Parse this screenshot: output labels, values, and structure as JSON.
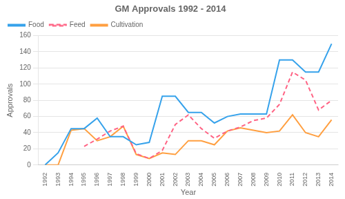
{
  "chart_data": {
    "type": "line",
    "title": "GM Approvals 1992 - 2014",
    "xlabel": "Year",
    "ylabel": "Approvals",
    "x": [
      1992,
      1993,
      1994,
      1995,
      1996,
      1997,
      1998,
      1999,
      2000,
      2001,
      2002,
      2003,
      2004,
      2005,
      2006,
      2007,
      2008,
      2009,
      2010,
      2011,
      2012,
      2013,
      2014
    ],
    "series": [
      {
        "name": "Food",
        "line_style": "solid",
        "values": [
          0,
          15,
          45,
          45,
          58,
          35,
          35,
          25,
          28,
          85,
          85,
          65,
          65,
          52,
          60,
          63,
          63,
          63,
          130,
          130,
          115,
          115,
          150
        ]
      },
      {
        "name": "Feed",
        "line_style": "dashed",
        "values": [
          null,
          null,
          null,
          23,
          32,
          42,
          48,
          14,
          8,
          18,
          50,
          62,
          45,
          33,
          42,
          47,
          55,
          58,
          75,
          115,
          105,
          68,
          80
        ]
      },
      {
        "name": "Cultivation",
        "line_style": "solid",
        "values": [
          0,
          0,
          43,
          45,
          30,
          35,
          48,
          13,
          8,
          15,
          13,
          30,
          30,
          25,
          42,
          46,
          43,
          40,
          42,
          62,
          40,
          35,
          56
        ]
      }
    ],
    "xlim": [
      1991.5,
      2014.5
    ],
    "xticks": [
      1992,
      1993,
      1994,
      1995,
      1996,
      1997,
      1998,
      1999,
      2000,
      2001,
      2002,
      2003,
      2004,
      2005,
      2006,
      2007,
      2008,
      2009,
      2010,
      2011,
      2012,
      2013,
      2014
    ],
    "ylim": [
      0,
      160
    ],
    "yticks": [
      0,
      20,
      40,
      60,
      80,
      100,
      120,
      140,
      160
    ],
    "grid": "y",
    "legend": "upper left"
  }
}
